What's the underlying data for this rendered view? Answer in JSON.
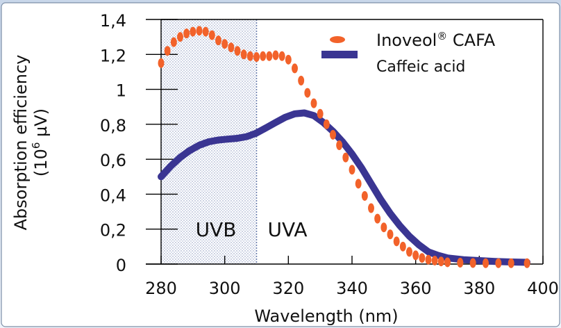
{
  "chart_data": {
    "type": "scatter",
    "xlabel": "Wavelength (nm)",
    "ylabel_line1": "Absorption efficiency",
    "ylabel_line2_base": "(10",
    "ylabel_line2_sup": "6",
    "ylabel_line2_rest": " µV)",
    "xlim": [
      280,
      400
    ],
    "ylim": [
      0,
      1.4
    ],
    "x_ticks": [
      "280",
      "300",
      "320",
      "340",
      "360",
      "380",
      "400"
    ],
    "y_ticks": [
      "0",
      "0,2",
      "0,4",
      "0,6",
      "0,8",
      "1",
      "1,2",
      "1,4"
    ],
    "grid": false,
    "legend_position": "top-right",
    "regions": [
      {
        "label": "UVB",
        "from": 280,
        "to": 310,
        "shaded": true
      },
      {
        "label": "UVA",
        "from": 310,
        "to": 400,
        "shaded": false
      }
    ],
    "series": [
      {
        "name": "Inoveol® CAFA",
        "name_base": "Inoveol",
        "name_sup": "®",
        "name_rest": " CAFA",
        "color": "#f2622a",
        "style": "dotted",
        "x": [
          280,
          282,
          284,
          286,
          288,
          290,
          292,
          294,
          296,
          298,
          300,
          302,
          304,
          306,
          308,
          310,
          312,
          314,
          316,
          318,
          320,
          322,
          324,
          326,
          328,
          330,
          332,
          334,
          336,
          338,
          340,
          342,
          344,
          346,
          348,
          350,
          352,
          354,
          356,
          358,
          360,
          362,
          364,
          366,
          368,
          370,
          374,
          378,
          382,
          386,
          390,
          395
        ],
        "y": [
          1.15,
          1.22,
          1.27,
          1.3,
          1.32,
          1.33,
          1.335,
          1.33,
          1.31,
          1.28,
          1.26,
          1.24,
          1.22,
          1.2,
          1.19,
          1.185,
          1.19,
          1.19,
          1.195,
          1.19,
          1.17,
          1.12,
          1.05,
          0.98,
          0.92,
          0.86,
          0.8,
          0.74,
          0.68,
          0.61,
          0.54,
          0.46,
          0.39,
          0.32,
          0.26,
          0.21,
          0.17,
          0.13,
          0.1,
          0.07,
          0.05,
          0.035,
          0.025,
          0.02,
          0.015,
          0.01,
          0.008,
          0.006,
          0.005,
          0.005,
          0.005,
          0.005
        ]
      },
      {
        "name": "Caffeic acid",
        "color": "#3a3592",
        "style": "solid",
        "x": [
          280,
          283,
          286,
          289,
          292,
          295,
          298,
          301,
          304,
          307,
          310,
          313,
          316,
          319,
          322,
          325,
          328,
          331,
          334,
          337,
          340,
          343,
          346,
          349,
          352,
          355,
          358,
          361,
          364,
          367,
          370,
          375,
          380,
          385,
          390,
          395
        ],
        "y": [
          0.5,
          0.56,
          0.61,
          0.65,
          0.68,
          0.7,
          0.71,
          0.715,
          0.72,
          0.73,
          0.75,
          0.78,
          0.81,
          0.84,
          0.86,
          0.865,
          0.85,
          0.81,
          0.76,
          0.7,
          0.63,
          0.55,
          0.46,
          0.37,
          0.29,
          0.22,
          0.16,
          0.11,
          0.07,
          0.05,
          0.035,
          0.025,
          0.02,
          0.015,
          0.012,
          0.01
        ]
      }
    ]
  }
}
